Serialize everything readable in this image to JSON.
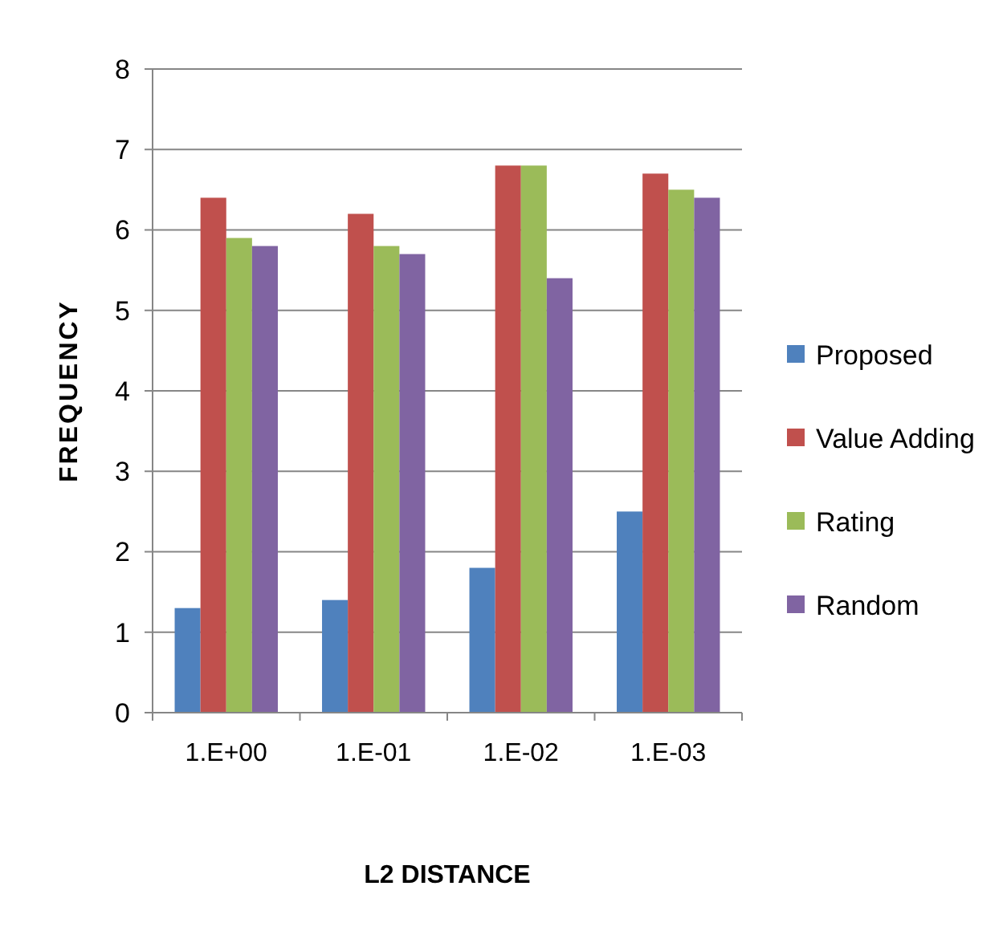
{
  "chart_data": {
    "type": "bar",
    "xlabel": "L2 DISTANCE",
    "ylabel": "FREQUENCY",
    "categories": [
      "1.E+00",
      "1.E-01",
      "1.E-02",
      "1.E-03"
    ],
    "series": [
      {
        "name": "Proposed",
        "color": "#4f81bd",
        "values": [
          1.3,
          1.4,
          1.8,
          2.5
        ]
      },
      {
        "name": "Value Adding",
        "color": "#c0504d",
        "values": [
          6.4,
          6.2,
          6.8,
          6.7
        ]
      },
      {
        "name": "Rating",
        "color": "#9bbb59",
        "values": [
          5.9,
          5.8,
          6.8,
          6.5
        ]
      },
      {
        "name": "Random",
        "color": "#8064a2",
        "values": [
          5.8,
          5.7,
          5.4,
          6.4
        ]
      }
    ],
    "ylim": [
      0,
      8
    ],
    "yticks": [
      0,
      1,
      2,
      3,
      4,
      5,
      6,
      7,
      8
    ],
    "grid": "y",
    "legend": "right"
  }
}
